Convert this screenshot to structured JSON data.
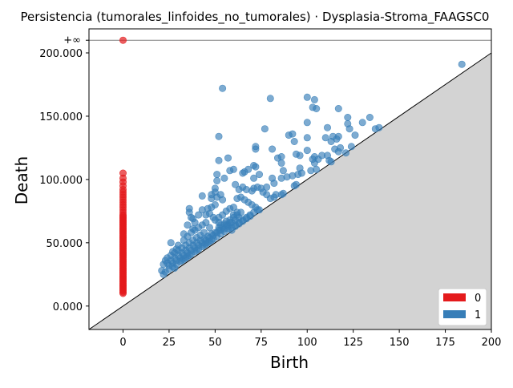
{
  "chart_data": {
    "type": "scatter",
    "title": "Persistencia (tumorales_linfoides_no_tumorales) · Dysplasia-Stroma_FAAGSC0",
    "xlabel": "Birth",
    "ylabel": "Death",
    "xlim": [
      -18.5,
      200
    ],
    "ylim": [
      -18500,
      219000
    ],
    "x_ticks": [
      0,
      25,
      50,
      75,
      100,
      125,
      150,
      175,
      200
    ],
    "x_tick_labels": [
      "0",
      "25",
      "50",
      "75",
      "100",
      "125",
      "150",
      "175",
      "200"
    ],
    "y_ticks": [
      0,
      50000,
      100000,
      150000,
      200000
    ],
    "y_tick_labels": [
      "0.000",
      "50.000",
      "100.000",
      "150.000",
      "200.000"
    ],
    "infinity_label": "+∞",
    "infinity_value": 210000,
    "diagonal": true,
    "grid": false,
    "legend_position": "lower-right",
    "colors": {
      "h0": "#e41a1c",
      "h1": "#377eb8",
      "diagonal_fill": "#d3d3d3",
      "infinity_line": "#808080"
    },
    "series": [
      {
        "name": "0",
        "color": "#e41a1c",
        "x": 0,
        "y": [
          210000,
          105000,
          101000,
          98000,
          95000,
          92000,
          90000,
          88000,
          86000,
          84000,
          82000,
          80000,
          78000,
          76000,
          74000,
          72000,
          71000,
          70000,
          69000,
          68000,
          67000,
          66000,
          65000,
          64000,
          63000,
          62000,
          61000,
          60000,
          59000,
          58000,
          57000,
          56000,
          55000,
          54000,
          53000,
          52000,
          51000,
          50000,
          49000,
          48000,
          47000,
          46000,
          45000,
          44000,
          43000,
          42000,
          41000,
          40000,
          39000,
          38000,
          37000,
          36000,
          35000,
          34000,
          33000,
          32000,
          31000,
          30000,
          29000,
          28000,
          27000,
          26000,
          25000,
          24000,
          23000,
          22000,
          21000,
          20000,
          19000,
          18000,
          17000,
          16000,
          15000,
          14000,
          13000,
          12000,
          11000,
          10000
        ]
      },
      {
        "name": "1",
        "color": "#377eb8",
        "points": [
          [
            184,
            191000
          ],
          [
            100,
            165000
          ],
          [
            104,
            163000
          ],
          [
            80,
            164000
          ],
          [
            117,
            156000
          ],
          [
            105,
            156000
          ],
          [
            103,
            157000
          ],
          [
            54,
            172000
          ],
          [
            122,
            149000
          ],
          [
            134,
            149000
          ],
          [
            122,
            144000
          ],
          [
            123,
            140000
          ],
          [
            130,
            145000
          ],
          [
            137,
            140000
          ],
          [
            139,
            141000
          ],
          [
            100,
            145000
          ],
          [
            111,
            141000
          ],
          [
            77,
            140000
          ],
          [
            90,
            135000
          ],
          [
            92,
            136000
          ],
          [
            93,
            130000
          ],
          [
            100,
            133000
          ],
          [
            110,
            133000
          ],
          [
            113,
            130000
          ],
          [
            114,
            134000
          ],
          [
            116,
            132000
          ],
          [
            117,
            134000
          ],
          [
            126,
            135000
          ],
          [
            52,
            134000
          ],
          [
            72,
            126000
          ],
          [
            72,
            124000
          ],
          [
            81,
            124000
          ],
          [
            86,
            118000
          ],
          [
            84,
            117000
          ],
          [
            94,
            120000
          ],
          [
            96,
            119000
          ],
          [
            100,
            123000
          ],
          [
            104,
            118000
          ],
          [
            106,
            116000
          ],
          [
            108,
            119000
          ],
          [
            111,
            119000
          ],
          [
            115,
            124000
          ],
          [
            117,
            122000
          ],
          [
            118,
            125000
          ],
          [
            124,
            126000
          ],
          [
            121,
            121000
          ],
          [
            112,
            115000
          ],
          [
            113,
            114000
          ],
          [
            103,
            116000
          ],
          [
            104,
            113000
          ],
          [
            102,
            107000
          ],
          [
            105,
            108000
          ],
          [
            96,
            109000
          ],
          [
            95,
            104000
          ],
          [
            86,
            113000
          ],
          [
            87,
            107000
          ],
          [
            81,
            101000
          ],
          [
            86,
            101000
          ],
          [
            89,
            102000
          ],
          [
            92,
            103000
          ],
          [
            97,
            105000
          ],
          [
            93,
            95000
          ],
          [
            94,
            96000
          ],
          [
            87,
            89000
          ],
          [
            86,
            88000
          ],
          [
            83,
            88000
          ],
          [
            82,
            97000
          ],
          [
            78,
            94000
          ],
          [
            75,
            93000
          ],
          [
            71,
            101000
          ],
          [
            72,
            110000
          ],
          [
            71,
            111000
          ],
          [
            74,
            104000
          ],
          [
            68,
            108000
          ],
          [
            66,
            106000
          ],
          [
            65,
            105000
          ],
          [
            60,
            108000
          ],
          [
            58,
            107000
          ],
          [
            57,
            117000
          ],
          [
            52,
            115000
          ],
          [
            51,
            104000
          ],
          [
            51,
            99000
          ],
          [
            55,
            101000
          ],
          [
            61,
            96000
          ],
          [
            63,
            92000
          ],
          [
            65,
            94000
          ],
          [
            67,
            92000
          ],
          [
            70,
            91000
          ],
          [
            71,
            93000
          ],
          [
            73,
            94000
          ],
          [
            76,
            90000
          ],
          [
            78,
            88000
          ],
          [
            80,
            85000
          ],
          [
            82,
            86000
          ],
          [
            68,
            82000
          ],
          [
            70,
            80000
          ],
          [
            72,
            78000
          ],
          [
            74,
            76000
          ],
          [
            66,
            84000
          ],
          [
            64,
            86000
          ],
          [
            62,
            85000
          ],
          [
            60,
            78000
          ],
          [
            58,
            77000
          ],
          [
            56,
            75000
          ],
          [
            54,
            72000
          ],
          [
            52,
            70000
          ],
          [
            50,
            93000
          ],
          [
            50,
            90000
          ],
          [
            48,
            88000
          ],
          [
            48,
            85000
          ],
          [
            51,
            86000
          ],
          [
            53,
            88000
          ],
          [
            54,
            84000
          ],
          [
            50,
            80000
          ],
          [
            48,
            78000
          ],
          [
            46,
            77000
          ],
          [
            43,
            76000
          ],
          [
            41,
            72000
          ],
          [
            36,
            77000
          ],
          [
            36,
            74000
          ],
          [
            37,
            70000
          ],
          [
            38,
            69000
          ],
          [
            39,
            66000
          ],
          [
            43,
            87000
          ],
          [
            45,
            72000
          ],
          [
            47,
            73000
          ],
          [
            49,
            70000
          ],
          [
            50,
            68000
          ],
          [
            52,
            66000
          ],
          [
            53,
            64000
          ],
          [
            55,
            65000
          ],
          [
            57,
            63000
          ],
          [
            59,
            62000
          ],
          [
            61,
            64000
          ],
          [
            63,
            66000
          ],
          [
            65,
            68000
          ],
          [
            67,
            70000
          ],
          [
            69,
            72000
          ],
          [
            71,
            74000
          ],
          [
            73,
            76000
          ],
          [
            64,
            74000
          ],
          [
            62,
            72000
          ],
          [
            60,
            70000
          ],
          [
            58,
            68000
          ],
          [
            56,
            67000
          ],
          [
            54,
            62000
          ],
          [
            52,
            60000
          ],
          [
            50,
            58000
          ],
          [
            48,
            57000
          ],
          [
            46,
            55000
          ],
          [
            44,
            53000
          ],
          [
            42,
            52000
          ],
          [
            40,
            50000
          ],
          [
            38,
            48000
          ],
          [
            36,
            46000
          ],
          [
            34,
            44000
          ],
          [
            32,
            42000
          ],
          [
            30,
            40000
          ],
          [
            28,
            38000
          ],
          [
            26,
            36000
          ],
          [
            24,
            34000
          ],
          [
            22,
            33000
          ],
          [
            21,
            28000
          ],
          [
            22,
            25000
          ],
          [
            23,
            27000
          ],
          [
            25,
            29000
          ],
          [
            27,
            31000
          ],
          [
            29,
            33000
          ],
          [
            31,
            35000
          ],
          [
            33,
            37000
          ],
          [
            35,
            39000
          ],
          [
            37,
            41000
          ],
          [
            39,
            43000
          ],
          [
            41,
            45000
          ],
          [
            43,
            47000
          ],
          [
            45,
            49000
          ],
          [
            47,
            51000
          ],
          [
            49,
            53000
          ],
          [
            51,
            55000
          ],
          [
            53,
            57000
          ],
          [
            55,
            59000
          ],
          [
            57,
            61000
          ],
          [
            59,
            60000
          ],
          [
            61,
            63000
          ],
          [
            63,
            65000
          ],
          [
            65,
            67000
          ],
          [
            67,
            69000
          ],
          [
            69,
            71000
          ],
          [
            26,
            50000
          ],
          [
            30,
            48000
          ],
          [
            33,
            52000
          ],
          [
            35,
            55000
          ],
          [
            37,
            58000
          ],
          [
            39,
            60000
          ],
          [
            41,
            62000
          ],
          [
            43,
            64000
          ],
          [
            45,
            66000
          ],
          [
            47,
            62000
          ],
          [
            44,
            58000
          ],
          [
            42,
            56000
          ],
          [
            40,
            54000
          ],
          [
            38,
            52000
          ],
          [
            36,
            50000
          ],
          [
            34,
            48000
          ],
          [
            32,
            46000
          ],
          [
            30,
            44000
          ],
          [
            28,
            42000
          ],
          [
            26,
            40000
          ],
          [
            24,
            38000
          ],
          [
            25,
            32000
          ],
          [
            27,
            34000
          ],
          [
            29,
            36000
          ],
          [
            31,
            38000
          ],
          [
            33,
            40000
          ],
          [
            35,
            42000
          ],
          [
            37,
            44000
          ],
          [
            39,
            46000
          ],
          [
            41,
            48000
          ],
          [
            43,
            50000
          ],
          [
            45,
            52000
          ],
          [
            47,
            54000
          ],
          [
            49,
            56000
          ],
          [
            51,
            58000
          ],
          [
            53,
            60000
          ],
          [
            55,
            61000
          ],
          [
            57,
            64000
          ],
          [
            59,
            66000
          ],
          [
            61,
            68000
          ],
          [
            63,
            70000
          ],
          [
            35,
            64000
          ],
          [
            38,
            61000
          ],
          [
            33,
            57000
          ],
          [
            29,
            45000
          ],
          [
            27,
            43000
          ],
          [
            23,
            36000
          ],
          [
            28,
            30000
          ],
          [
            32,
            36000
          ],
          [
            34,
            38000
          ],
          [
            36,
            40000
          ],
          [
            40,
            44000
          ],
          [
            44,
            48000
          ],
          [
            46,
            50000
          ],
          [
            48,
            52000
          ],
          [
            52,
            62000
          ],
          [
            56,
            64000
          ],
          [
            58,
            66000
          ],
          [
            60,
            72000
          ],
          [
            62,
            74000
          ]
        ]
      }
    ],
    "legend": [
      {
        "label": "0",
        "color": "#e41a1c"
      },
      {
        "label": "1",
        "color": "#377eb8"
      }
    ]
  }
}
